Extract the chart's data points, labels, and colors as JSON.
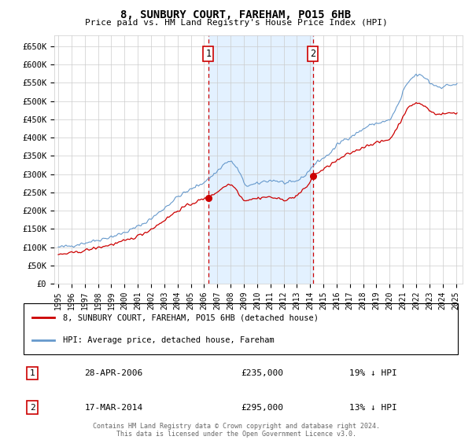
{
  "title": "8, SUNBURY COURT, FAREHAM, PO15 6HB",
  "subtitle": "Price paid vs. HM Land Registry's House Price Index (HPI)",
  "ylim": [
    0,
    680000
  ],
  "xlim_start": 1994.7,
  "xlim_end": 2025.5,
  "transaction1": {
    "date_x": 2006.32,
    "price": 235000,
    "label": "1",
    "date_str": "28-APR-2006",
    "pct": "19% ↓ HPI"
  },
  "transaction2": {
    "date_x": 2014.21,
    "price": 295000,
    "label": "2",
    "date_str": "17-MAR-2014",
    "pct": "13% ↓ HPI"
  },
  "legend_label1": "8, SUNBURY COURT, FAREHAM, PO15 6HB (detached house)",
  "legend_label2": "HPI: Average price, detached house, Fareham",
  "footnote": "Contains HM Land Registry data © Crown copyright and database right 2024.\nThis data is licensed under the Open Government Licence v3.0.",
  "hpi_color": "#6699cc",
  "price_color": "#cc0000",
  "vline_color": "#cc0000",
  "span_color": "#ddeeff",
  "grid_color": "#cccccc",
  "bg_color": "#ffffff",
  "tick_values": [
    0,
    50000,
    100000,
    150000,
    200000,
    250000,
    300000,
    350000,
    400000,
    450000,
    500000,
    550000,
    600000,
    650000
  ],
  "tick_labels": [
    "£0",
    "£50K",
    "£100K",
    "£150K",
    "£200K",
    "£250K",
    "£300K",
    "£350K",
    "£400K",
    "£450K",
    "£500K",
    "£550K",
    "£600K",
    "£650K"
  ]
}
